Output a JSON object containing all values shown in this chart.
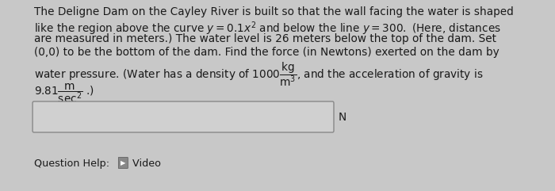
{
  "bg_color": "#c8c8c8",
  "text_color": "#1a1a1a",
  "line1": "The Deligne Dam on the Cayley River is built so that the wall facing the water is shaped",
  "line3": "are measured in meters.) The water level is 26 meters below the top of the dam. Set",
  "line4": "(0,0) to be the bottom of the dam. Find the force (in Newtons) exerted on the dam by",
  "line5_end": ", and the acceleration of gravity is",
  "N_label": "N",
  "footer": "Question Help:",
  "footer_video": " Video",
  "font_size_body": 9.8,
  "font_size_footer": 9.2
}
